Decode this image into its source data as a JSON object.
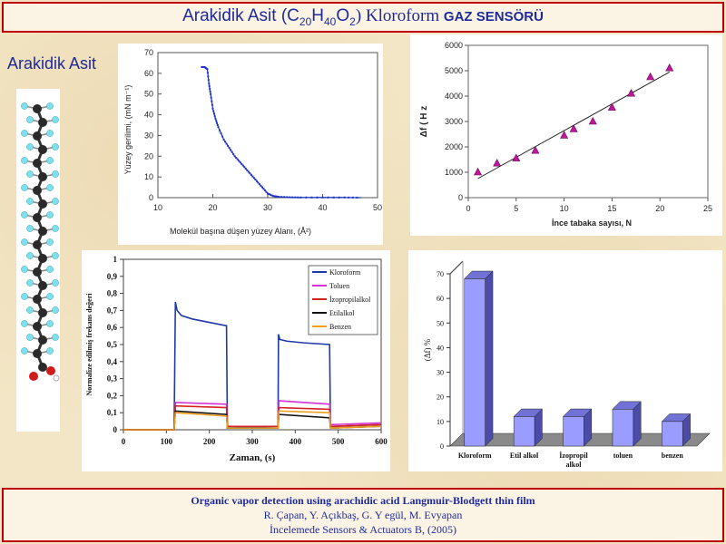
{
  "header": {
    "title_part1": "Arakidik Asit (",
    "formula_C": "C",
    "formula_C_sub": "20",
    "formula_H": "H",
    "formula_H_sub": "40",
    "formula_O": "O",
    "formula_O_sub": "2",
    "title_part2": ") Kloroform ",
    "title_part3": "GAZ SENSÖRÜ"
  },
  "side_label": "Arakidik Asit",
  "colors": {
    "title_text": "#1f2a9a",
    "border": "#c00000",
    "isotherm": "#1f35c8",
    "scatter_marker": "#c0189a",
    "bar_fill": "#9a9cff"
  },
  "chart_data": [
    {
      "type": "line",
      "xlabel": "Molekül başına düşen yüzey Alanı, (Å²)",
      "ylabel": "Yüzey gerilimi, (mN m⁻¹)",
      "xlim": [
        10,
        50
      ],
      "ylim": [
        0,
        70
      ],
      "xticks": [
        "10",
        "20",
        "30",
        "40",
        "50"
      ],
      "yticks": [
        "0",
        "10",
        "20",
        "30",
        "40",
        "50",
        "60",
        "70"
      ],
      "x": [
        18.0,
        18.5,
        19.0,
        19.3,
        19.6,
        20.0,
        20.5,
        21.0,
        22.0,
        23.0,
        24.0,
        25.0,
        26.0,
        27.0,
        28.0,
        29.0,
        30.0,
        31.0,
        32.0,
        34.0,
        36.0,
        40.0,
        44.0,
        47.0
      ],
      "y": [
        63,
        63,
        62,
        55,
        50,
        43,
        38,
        34,
        28,
        24,
        20,
        17,
        14,
        11,
        8,
        5,
        2,
        0.8,
        0.4,
        0.2,
        0.1,
        0.1,
        0.1,
        0
      ]
    },
    {
      "type": "scatter",
      "xlabel": "İnce tabaka sayısı, N",
      "ylabel": "Δf ( H z",
      "xlim": [
        0,
        25
      ],
      "ylim": [
        0,
        6000
      ],
      "xticks": [
        "0",
        "5",
        "10",
        "15",
        "20",
        "25"
      ],
      "yticks": [
        "0",
        "1000",
        "2000",
        "3000",
        "4000",
        "5000",
        "6000"
      ],
      "x": [
        1,
        3,
        5,
        7,
        10,
        11,
        13,
        15,
        17,
        19,
        21
      ],
      "y": [
        1000,
        1350,
        1550,
        1850,
        2450,
        2700,
        3000,
        3550,
        4100,
        4750,
        5100
      ],
      "trendline": [
        [
          1,
          750
        ],
        [
          21,
          4950
        ]
      ]
    },
    {
      "type": "line",
      "xlabel": "Zaman, (s)",
      "ylabel": "Normalize edilmiş frekans değeri",
      "xlim": [
        0,
        600
      ],
      "ylim": [
        0,
        1
      ],
      "xticks": [
        "0",
        "100",
        "200",
        "300",
        "400",
        "500",
        "600"
      ],
      "yticks": [
        "0",
        "0,1",
        "0,2",
        "0,3",
        "0,4",
        "0,5",
        "0,6",
        "0,7",
        "0,8",
        "0,9",
        "1"
      ],
      "legend_position": "top-right",
      "series": [
        {
          "name": "Kloroform",
          "color": "#1f3aa8",
          "x": [
            0,
            118,
            121,
            125,
            135,
            160,
            200,
            240,
            242,
            360,
            361,
            364,
            380,
            420,
            480,
            482,
            600
          ],
          "y": [
            0,
            0,
            0.75,
            0.7,
            0.67,
            0.65,
            0.63,
            0.61,
            0.01,
            0.02,
            0.56,
            0.53,
            0.52,
            0.51,
            0.5,
            0.02,
            0.03
          ]
        },
        {
          "name": "Toluen",
          "color": "#d633d6",
          "x": [
            0,
            118,
            121,
            240,
            242,
            360,
            362,
            480,
            482,
            600
          ],
          "y": [
            0,
            0,
            0.16,
            0.15,
            0.02,
            0.02,
            0.17,
            0.15,
            0.03,
            0.04
          ]
        },
        {
          "name": "İzopropilalkol",
          "color": "#d62222",
          "x": [
            0,
            118,
            121,
            240,
            242,
            360,
            362,
            480,
            482,
            600
          ],
          "y": [
            0,
            0,
            0.14,
            0.13,
            0.02,
            0.02,
            0.13,
            0.12,
            0.02,
            0.03
          ]
        },
        {
          "name": "Etilalkol",
          "color": "#111111",
          "x": [
            0,
            118,
            121,
            240,
            242,
            360,
            362,
            480,
            482,
            600
          ],
          "y": [
            0,
            0,
            0.11,
            0.09,
            0.01,
            0.01,
            0.09,
            0.07,
            0.01,
            0.02
          ]
        },
        {
          "name": "Benzen",
          "color": "#f0a020",
          "x": [
            0,
            118,
            121,
            240,
            242,
            360,
            362,
            480,
            482,
            600
          ],
          "y": [
            0,
            0,
            0.1,
            0.08,
            0.01,
            0.01,
            0.11,
            0.1,
            0.01,
            0.02
          ]
        }
      ]
    },
    {
      "type": "bar",
      "ylabel": "(Δf) %",
      "ylim": [
        0,
        70
      ],
      "yticks": [
        "0",
        "10",
        "20",
        "30",
        "40",
        "50",
        "60",
        "70"
      ],
      "categories": [
        "Kloroform",
        "Etil alkol",
        "İzopropil alkol",
        "toluen",
        "benzen"
      ],
      "values": [
        68,
        12,
        12,
        15,
        10
      ]
    }
  ],
  "footer": {
    "line1": "Organic vapor detection using arachidic acid Langmuir-Blodgett thin film",
    "line2": "R. Çapan, Y. Açıkbaş, G. Y egül, M. Evyapan",
    "line3": "İncelemede Sensors & Actuators B, (2005)"
  }
}
